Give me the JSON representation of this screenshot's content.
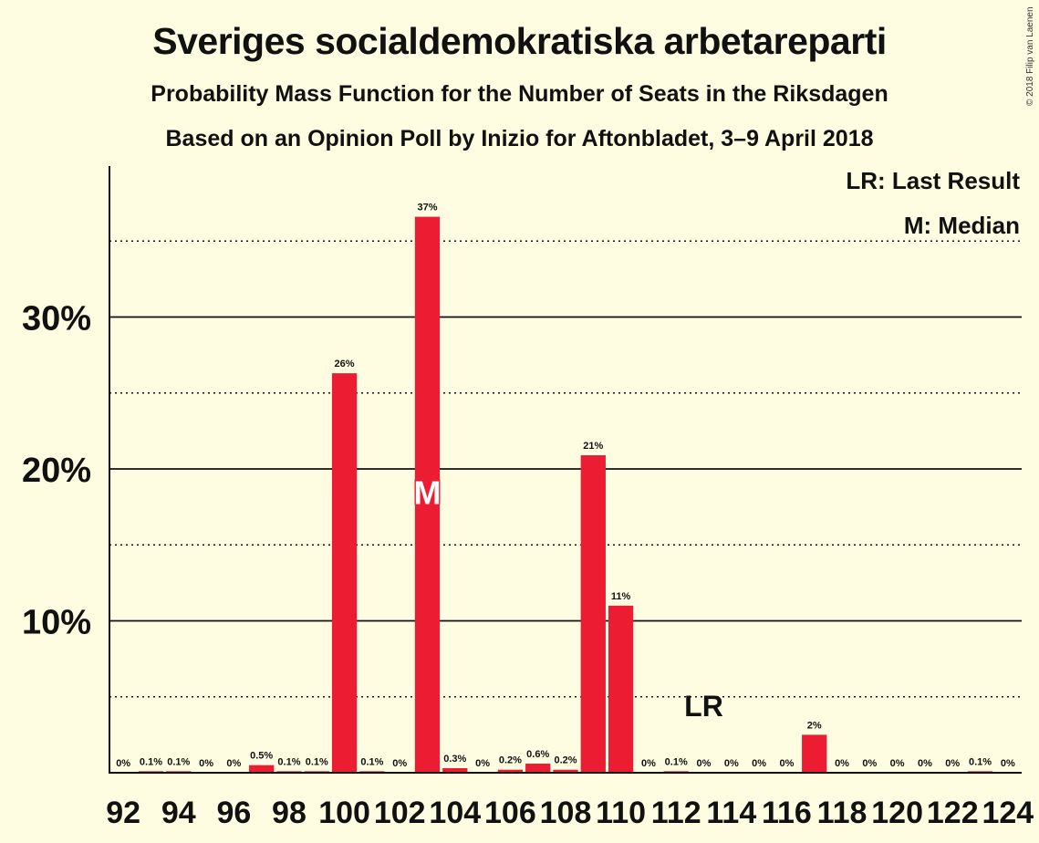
{
  "title": "Sveriges socialdemokratiska arbetareparti",
  "subtitle": "Probability Mass Function for the Number of Seats in the Riksdagen",
  "subtitle2": "Based on an Opinion Poll by Inizio for Aftonbladet, 3–9 April 2018",
  "copyright": "© 2018 Filip van Laenen",
  "legend": {
    "last_result": "LR: Last Result",
    "median": "M: Median"
  },
  "colors": {
    "background": "#fffde1",
    "bar": "#ec1c33",
    "text": "#111111"
  },
  "chart_data": {
    "type": "bar",
    "x": [
      92,
      93,
      94,
      95,
      96,
      97,
      98,
      99,
      100,
      101,
      102,
      103,
      104,
      105,
      106,
      107,
      108,
      109,
      110,
      111,
      112,
      113,
      114,
      115,
      116,
      117,
      118,
      119,
      120,
      121,
      122,
      123,
      124
    ],
    "values": [
      0,
      0.1,
      0.1,
      0,
      0,
      0.5,
      0.1,
      0.1,
      26.3,
      0.1,
      0,
      36.6,
      0.3,
      0,
      0.2,
      0.6,
      0.2,
      20.9,
      11.0,
      0,
      0.1,
      0,
      0,
      0,
      0,
      2.5,
      0,
      0,
      0,
      0,
      0,
      0.1,
      0
    ],
    "labels": [
      "0%",
      "0.1%",
      "0.1%",
      "0%",
      "0%",
      "0.5%",
      "0.1%",
      "0.1%",
      "26%",
      "0.1%",
      "0%",
      "37%",
      "0.3%",
      "0%",
      "0.2%",
      "0.6%",
      "0.2%",
      "21%",
      "11%",
      "0%",
      "0.1%",
      "0%",
      "0%",
      "0%",
      "0%",
      "2%",
      "0%",
      "0%",
      "0%",
      "0%",
      "0%",
      "0.1%",
      "0%"
    ],
    "x_tick_labels": [
      "92",
      "94",
      "96",
      "98",
      "100",
      "102",
      "104",
      "106",
      "108",
      "110",
      "112",
      "114",
      "116",
      "118",
      "120",
      "122",
      "124"
    ],
    "y_tick_labels": [
      "10%",
      "20%",
      "30%"
    ],
    "y_ticks": [
      10,
      20,
      30
    ],
    "y_minor_gridlines": [
      5,
      15,
      25,
      35
    ],
    "ylim": [
      0,
      40
    ],
    "median_seat": 103,
    "median_marker": "M",
    "last_result_seat": 113,
    "last_result_marker": "LR",
    "last_result_level": 5,
    "grid": true,
    "legend_position": "top-right"
  }
}
